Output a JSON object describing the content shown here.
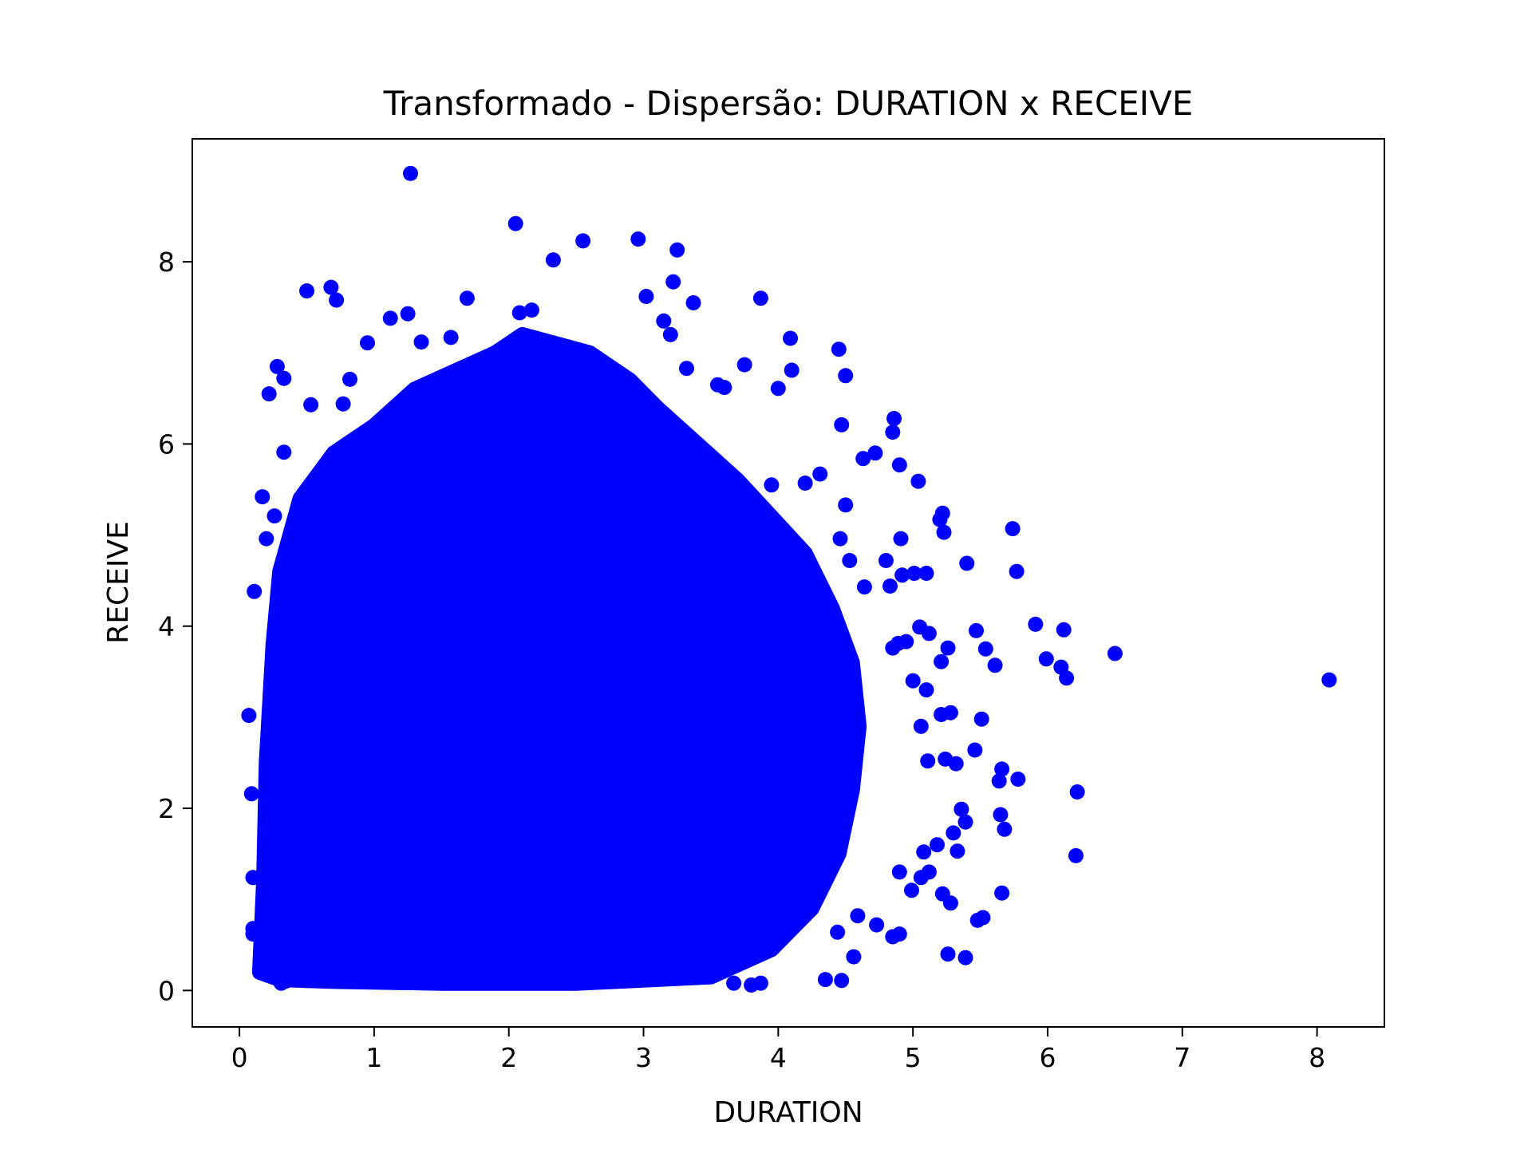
{
  "chart_data": {
    "type": "scatter",
    "title": "Transformado - Dispersão: DURATION x RECEIVE",
    "xlabel": "DURATION",
    "ylabel": "RECEIVE",
    "xlim": [
      -0.35,
      8.5
    ],
    "ylim": [
      -0.4,
      9.35
    ],
    "x_ticks": [
      "0",
      "1",
      "2",
      "3",
      "4",
      "5",
      "6",
      "7",
      "8"
    ],
    "y_ticks": [
      "0",
      "2",
      "4",
      "6",
      "8"
    ],
    "grid": false,
    "legend": "none",
    "marker_color": "#0000ff",
    "series": [
      {
        "points": [
          [
            1.27,
            8.97
          ],
          [
            2.05,
            8.42
          ],
          [
            2.55,
            8.23
          ],
          [
            2.96,
            8.25
          ],
          [
            3.25,
            8.13
          ],
          [
            2.33,
            8.02
          ],
          [
            0.5,
            7.68
          ],
          [
            0.68,
            7.72
          ],
          [
            0.72,
            7.58
          ],
          [
            1.69,
            7.6
          ],
          [
            3.02,
            7.62
          ],
          [
            3.22,
            7.78
          ],
          [
            3.37,
            7.55
          ],
          [
            3.87,
            7.6
          ],
          [
            1.25,
            7.43
          ],
          [
            1.12,
            7.38
          ],
          [
            2.17,
            7.47
          ],
          [
            2.08,
            7.44
          ],
          [
            3.15,
            7.35
          ],
          [
            3.2,
            7.2
          ],
          [
            4.09,
            7.16
          ],
          [
            4.45,
            7.04
          ],
          [
            0.95,
            7.11
          ],
          [
            1.35,
            7.12
          ],
          [
            1.57,
            7.17
          ],
          [
            0.28,
            6.85
          ],
          [
            0.33,
            6.72
          ],
          [
            0.22,
            6.55
          ],
          [
            4.1,
            6.81
          ],
          [
            4.5,
            6.75
          ],
          [
            3.75,
            6.87
          ],
          [
            4.0,
            6.61
          ],
          [
            4.47,
            6.21
          ],
          [
            4.86,
            6.28
          ],
          [
            4.85,
            6.13
          ],
          [
            4.9,
            5.77
          ],
          [
            5.04,
            5.59
          ],
          [
            5.22,
            5.24
          ],
          [
            5.2,
            5.17
          ],
          [
            5.23,
            5.03
          ],
          [
            5.74,
            5.07
          ],
          [
            5.4,
            4.69
          ],
          [
            5.77,
            4.6
          ],
          [
            4.91,
            4.96
          ],
          [
            4.92,
            4.56
          ],
          [
            5.01,
            4.58
          ],
          [
            5.1,
            4.58
          ],
          [
            5.47,
            3.95
          ],
          [
            5.54,
            3.75
          ],
          [
            5.61,
            3.57
          ],
          [
            5.91,
            4.02
          ],
          [
            6.12,
            3.96
          ],
          [
            5.99,
            3.64
          ],
          [
            6.1,
            3.55
          ],
          [
            6.14,
            3.43
          ],
          [
            6.5,
            3.7
          ],
          [
            8.09,
            3.41
          ],
          [
            5.66,
            2.43
          ],
          [
            5.78,
            2.32
          ],
          [
            5.64,
            2.3
          ],
          [
            6.22,
            2.18
          ],
          [
            5.51,
            2.98
          ],
          [
            5.46,
            2.64
          ],
          [
            5.65,
            1.93
          ],
          [
            5.68,
            1.77
          ],
          [
            6.21,
            1.48
          ],
          [
            5.66,
            1.07
          ],
          [
            5.48,
            0.77
          ],
          [
            5.52,
            0.8
          ],
          [
            5.26,
            0.4
          ],
          [
            5.39,
            0.36
          ],
          [
            4.47,
            0.11
          ],
          [
            4.35,
            0.12
          ],
          [
            0.07,
            3.02
          ],
          [
            0.09,
            2.16
          ],
          [
            0.1,
            1.24
          ],
          [
            0.1,
            0.68
          ],
          [
            0.1,
            0.62
          ],
          [
            0.22,
            0.47
          ],
          [
            0.31,
            0.08
          ],
          [
            0.34,
            0.1
          ],
          [
            0.5,
            0.11
          ],
          [
            0.11,
            4.38
          ],
          [
            0.17,
            5.42
          ],
          [
            0.2,
            4.96
          ],
          [
            0.26,
            5.21
          ],
          [
            0.33,
            5.91
          ],
          [
            0.53,
            6.43
          ],
          [
            0.77,
            6.44
          ],
          [
            0.82,
            6.71
          ],
          [
            3.32,
            6.83
          ],
          [
            3.55,
            6.65
          ],
          [
            3.6,
            6.62
          ],
          [
            3.95,
            5.55
          ],
          [
            4.2,
            5.57
          ],
          [
            4.31,
            5.67
          ],
          [
            4.5,
            5.33
          ],
          [
            4.63,
            5.84
          ],
          [
            4.72,
            5.9
          ],
          [
            4.46,
            4.96
          ],
          [
            4.53,
            4.72
          ],
          [
            4.8,
            4.72
          ],
          [
            4.83,
            4.44
          ],
          [
            4.64,
            4.43
          ],
          [
            4.85,
            3.76
          ],
          [
            4.89,
            3.81
          ],
          [
            4.95,
            3.83
          ],
          [
            5.05,
            3.99
          ],
          [
            5.12,
            3.92
          ],
          [
            5.21,
            3.61
          ],
          [
            5.26,
            3.76
          ],
          [
            5.0,
            3.4
          ],
          [
            5.1,
            3.3
          ],
          [
            5.21,
            3.03
          ],
          [
            5.28,
            3.05
          ],
          [
            5.06,
            2.9
          ],
          [
            5.11,
            2.52
          ],
          [
            5.24,
            2.54
          ],
          [
            5.32,
            2.49
          ],
          [
            5.36,
            1.99
          ],
          [
            5.39,
            1.85
          ],
          [
            5.3,
            1.73
          ],
          [
            5.33,
            1.53
          ],
          [
            5.18,
            1.6
          ],
          [
            5.08,
            1.52
          ],
          [
            5.12,
            1.3
          ],
          [
            4.9,
            1.3
          ],
          [
            4.99,
            1.1
          ],
          [
            5.06,
            1.24
          ],
          [
            5.22,
            1.06
          ],
          [
            5.28,
            0.96
          ],
          [
            4.9,
            0.62
          ],
          [
            4.85,
            0.59
          ],
          [
            4.56,
            0.37
          ],
          [
            4.73,
            0.72
          ],
          [
            4.59,
            0.82
          ],
          [
            4.44,
            0.64
          ],
          [
            3.35,
            0.66
          ],
          [
            3.8,
            0.06
          ],
          [
            3.87,
            0.08
          ],
          [
            3.67,
            0.08
          ]
        ]
      }
    ]
  }
}
